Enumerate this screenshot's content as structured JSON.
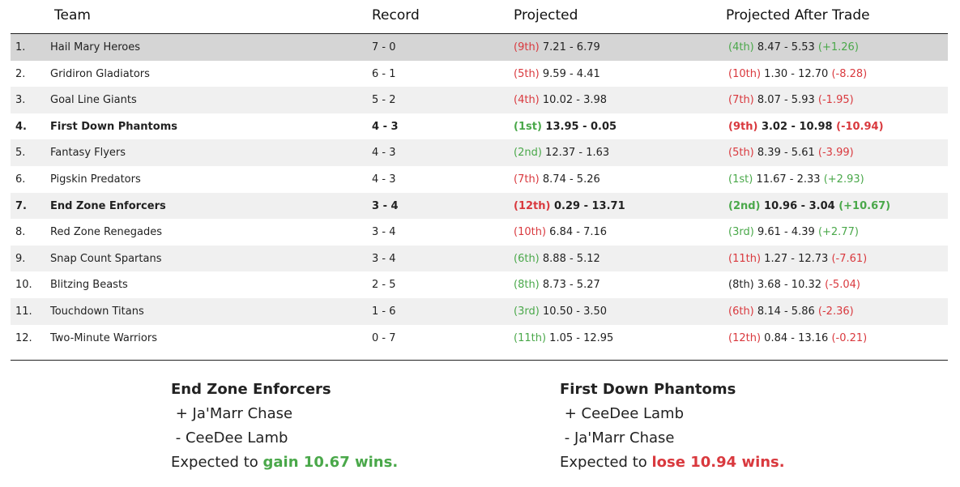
{
  "columns": {
    "team": "Team",
    "record": "Record",
    "projected": "Projected",
    "after": "Projected After Trade"
  },
  "rows": [
    {
      "rank": "1.",
      "team": "Hail Mary Heroes",
      "record": "7 - 0",
      "proj_rank": "(9th)",
      "proj_rank_color": "red",
      "proj_value": "7.21 - 6.79",
      "after_rank": "(4th)",
      "after_rank_color": "green",
      "after_value": "8.47 - 5.53",
      "delta": "(+1.26)",
      "delta_color": "green"
    },
    {
      "rank": "2.",
      "team": "Gridiron Gladiators",
      "record": "6 - 1",
      "proj_rank": "(5th)",
      "proj_rank_color": "red",
      "proj_value": "9.59 - 4.41",
      "after_rank": "(10th)",
      "after_rank_color": "red",
      "after_value": "1.30 - 12.70",
      "delta": "(-8.28)",
      "delta_color": "red"
    },
    {
      "rank": "3.",
      "team": "Goal Line Giants",
      "record": "5 - 2",
      "proj_rank": "(4th)",
      "proj_rank_color": "red",
      "proj_value": "10.02 - 3.98",
      "after_rank": "(7th)",
      "after_rank_color": "red",
      "after_value": "8.07 - 5.93",
      "delta": "(-1.95)",
      "delta_color": "red"
    },
    {
      "rank": "4.",
      "team": "First Down Phantoms",
      "record": "4 - 3",
      "proj_rank": "(1st)",
      "proj_rank_color": "green",
      "proj_value": "13.95 - 0.05",
      "after_rank": "(9th)",
      "after_rank_color": "red",
      "after_value": "3.02 - 10.98",
      "delta": "(-10.94)",
      "delta_color": "red"
    },
    {
      "rank": "5.",
      "team": "Fantasy Flyers",
      "record": "4 - 3",
      "proj_rank": "(2nd)",
      "proj_rank_color": "green",
      "proj_value": "12.37 - 1.63",
      "after_rank": "(5th)",
      "after_rank_color": "red",
      "after_value": "8.39 - 5.61",
      "delta": "(-3.99)",
      "delta_color": "red"
    },
    {
      "rank": "6.",
      "team": "Pigskin Predators",
      "record": "4 - 3",
      "proj_rank": "(7th)",
      "proj_rank_color": "red",
      "proj_value": "8.74 - 5.26",
      "after_rank": "(1st)",
      "after_rank_color": "green",
      "after_value": "11.67 - 2.33",
      "delta": "(+2.93)",
      "delta_color": "green"
    },
    {
      "rank": "7.",
      "team": "End Zone Enforcers",
      "record": "3 - 4",
      "proj_rank": "(12th)",
      "proj_rank_color": "red",
      "proj_value": "0.29 - 13.71",
      "after_rank": "(2nd)",
      "after_rank_color": "green",
      "after_value": "10.96 - 3.04",
      "delta": "(+10.67)",
      "delta_color": "green"
    },
    {
      "rank": "8.",
      "team": "Red Zone Renegades",
      "record": "3 - 4",
      "proj_rank": "(10th)",
      "proj_rank_color": "red",
      "proj_value": "6.84 - 7.16",
      "after_rank": "(3rd)",
      "after_rank_color": "green",
      "after_value": "9.61 - 4.39",
      "delta": "(+2.77)",
      "delta_color": "green"
    },
    {
      "rank": "9.",
      "team": "Snap Count Spartans",
      "record": "3 - 4",
      "proj_rank": "(6th)",
      "proj_rank_color": "green",
      "proj_value": "8.88 - 5.12",
      "after_rank": "(11th)",
      "after_rank_color": "red",
      "after_value": "1.27 - 12.73",
      "delta": "(-7.61)",
      "delta_color": "red"
    },
    {
      "rank": "10.",
      "team": "Blitzing Beasts",
      "record": "2 - 5",
      "proj_rank": "(8th)",
      "proj_rank_color": "green",
      "proj_value": "8.73 - 5.27",
      "after_rank": "(8th)",
      "after_rank_color": "neutral",
      "after_value": "3.68 - 10.32",
      "delta": "(-5.04)",
      "delta_color": "red"
    },
    {
      "rank": "11.",
      "team": "Touchdown Titans",
      "record": "1 - 6",
      "proj_rank": "(3rd)",
      "proj_rank_color": "green",
      "proj_value": "10.50 - 3.50",
      "after_rank": "(6th)",
      "after_rank_color": "red",
      "after_value": "8.14 - 5.86",
      "delta": "(-2.36)",
      "delta_color": "red"
    },
    {
      "rank": "12.",
      "team": "Two-Minute Warriors",
      "record": "0 - 7",
      "proj_rank": "(11th)",
      "proj_rank_color": "green",
      "proj_value": "1.05 - 12.95",
      "after_rank": "(12th)",
      "after_rank_color": "red",
      "after_value": "0.84 - 13.16",
      "delta": "(-0.21)",
      "delta_color": "red"
    }
  ],
  "highlight_row": 1,
  "bold_rows": [
    4,
    7
  ],
  "summary": {
    "left": {
      "team": "End Zone Enforcers",
      "gain": "+ Ja'Marr Chase",
      "loss": "- CeeDee Lamb",
      "expected_prefix": "Expected to",
      "expected_result": "gain 10.67 wins.",
      "result_color": "green"
    },
    "right": {
      "team": "First Down Phantoms",
      "gain": "+ CeeDee Lamb",
      "loss": "- Ja'Marr Chase",
      "expected_prefix": "Expected to",
      "expected_result": "lose 10.94 wins.",
      "result_color": "red"
    }
  },
  "colors": {
    "green": "#4aa84a",
    "red": "#d9393e",
    "highlight": "#d5d5d5",
    "stripe": "#f0f0f0"
  }
}
